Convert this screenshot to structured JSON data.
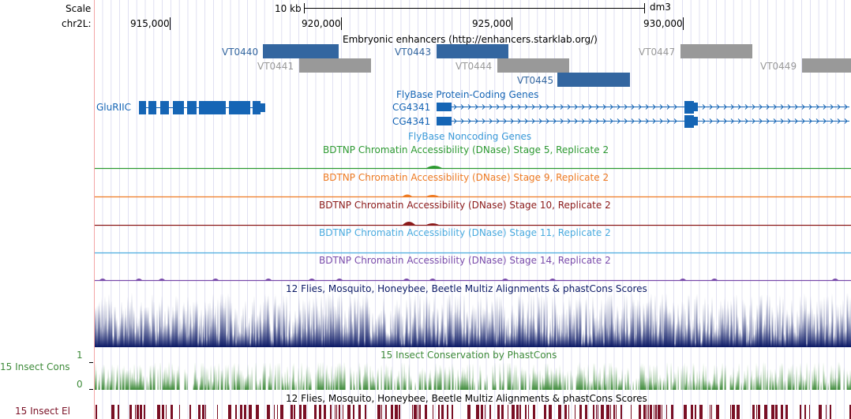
{
  "colors": {
    "enhancer_blue": "#3366a0",
    "enhancer_gray": "#999999",
    "gene_blue": "#1565b5",
    "noncoding_blue": "#3a9ad9",
    "stage5": "#2e9a32",
    "stage9": "#ee7a22",
    "stage10": "#8b1a1a",
    "stage11": "#4aabdf",
    "stage14": "#7a4cab",
    "multiz": "#0c1a66",
    "phastcons": "#3e8b3a",
    "elements": "#7a1025",
    "grid": "#d8d8ee",
    "left_border": "#f3a6a6"
  },
  "ruler": {
    "scale_label": "Scale",
    "chrom_label": "chr2L:",
    "scale_value": "10 kb",
    "assembly": "dm3",
    "positions": [
      "915,000",
      "920,000",
      "925,000",
      "930,000"
    ]
  },
  "tracks": {
    "enhancers": {
      "title": "Embryonic enhancers (http://enhancers.starklab.org/)",
      "items": [
        {
          "name": "VT0440",
          "style": "blue"
        },
        {
          "name": "VT0441",
          "style": "gray"
        },
        {
          "name": "VT0443",
          "style": "blue"
        },
        {
          "name": "VT0444",
          "style": "gray"
        },
        {
          "name": "VT0445",
          "style": "blue"
        },
        {
          "name": "VT0447",
          "style": "gray"
        },
        {
          "name": "VT0449",
          "style": "gray"
        }
      ]
    },
    "coding_genes": {
      "title": "FlyBase Protein-Coding Genes",
      "genes": [
        "GluRIIC",
        "CG4341",
        "CG4341"
      ]
    },
    "noncoding": {
      "title": "FlyBase Noncoding Genes"
    },
    "dnase": [
      {
        "title": "BDTNP Chromatin Accessibility (DNase) Stage 5, Replicate 2",
        "color_key": "stage5"
      },
      {
        "title": "BDTNP Chromatin Accessibility (DNase) Stage 9, Replicate 2",
        "color_key": "stage9"
      },
      {
        "title": "BDTNP Chromatin Accessibility (DNase) Stage 10, Replicate 2",
        "color_key": "stage10"
      },
      {
        "title": "BDTNP Chromatin Accessibility (DNase) Stage 11, Replicate 2",
        "color_key": "stage11"
      },
      {
        "title": "BDTNP Chromatin Accessibility (DNase) Stage 14, Replicate 2",
        "color_key": "stage14"
      }
    ],
    "multiz": {
      "title": "12 Flies, Mosquito, Honeybee, Beetle Multiz Alignments & phastCons Scores"
    },
    "phastcons": {
      "title": "15 Insect Conservation by PhastCons",
      "side_label": "15 Insect Cons",
      "ymax": "1",
      "ymin": "0"
    },
    "elements": {
      "title": "12 Flies, Mosquito, Honeybee, Beetle Multiz Alignments & phastCons Scores",
      "side_label": "15 Insect El"
    }
  }
}
